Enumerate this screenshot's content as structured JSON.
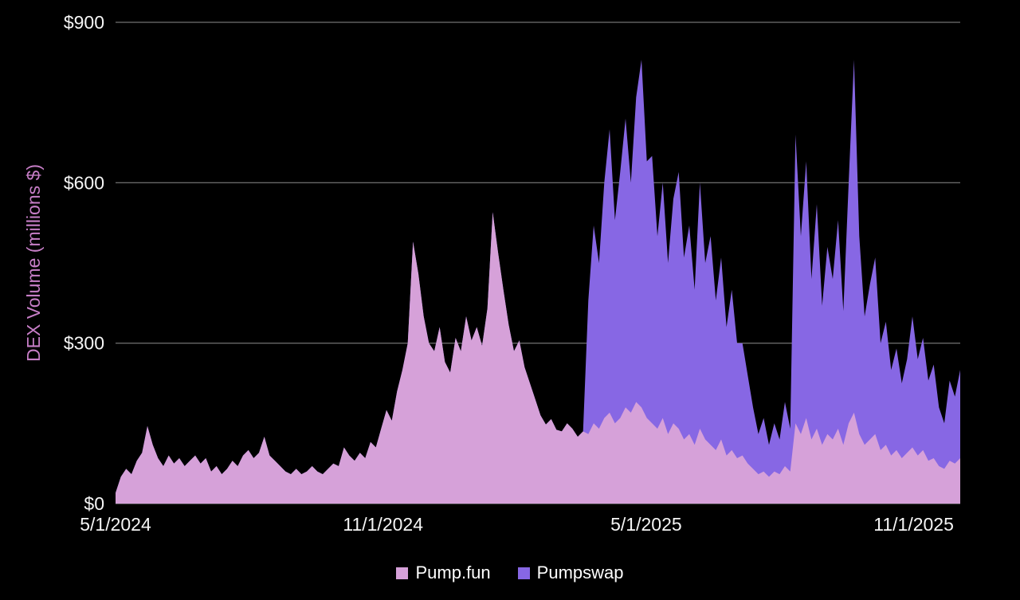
{
  "chart_data": {
    "type": "area",
    "stacked": true,
    "title": "",
    "xlabel": "",
    "ylabel": "DEX Volume (millions $)",
    "ylim": [
      0,
      900
    ],
    "background": "#000000",
    "gridline_color": "#8e8e8e",
    "axis_text_color": "#f5f5f5",
    "ylabel_color": "#c77ec7",
    "grid": true,
    "legend_position": "bottom",
    "y_ticks": [
      {
        "label": "$0",
        "value": 0
      },
      {
        "label": "$300",
        "value": 300
      },
      {
        "label": "$600",
        "value": 600
      },
      {
        "label": "$900",
        "value": 900
      }
    ],
    "x_ticks": [
      {
        "label": "5/1/2024",
        "pos": 0.0
      },
      {
        "label": "11/1/2024",
        "pos": 0.3167
      },
      {
        "label": "5/1/2025",
        "pos": 0.6282
      },
      {
        "label": "11/1/2025",
        "pos": 0.9449
      }
    ],
    "x_range_note": "5/1/2024 through early Dec 2025, ~3.7-day sampling",
    "series": [
      {
        "name": "Pump.fun",
        "color": "#d6a1d9",
        "values": [
          20,
          50,
          65,
          55,
          80,
          95,
          145,
          110,
          85,
          70,
          90,
          75,
          85,
          70,
          80,
          90,
          75,
          85,
          60,
          70,
          55,
          65,
          80,
          70,
          90,
          100,
          85,
          95,
          125,
          90,
          80,
          70,
          60,
          55,
          65,
          55,
          60,
          70,
          60,
          55,
          65,
          75,
          70,
          105,
          90,
          80,
          95,
          85,
          115,
          105,
          140,
          175,
          155,
          210,
          250,
          300,
          490,
          430,
          350,
          300,
          285,
          330,
          265,
          245,
          310,
          285,
          350,
          305,
          330,
          295,
          365,
          545,
          470,
          400,
          335,
          285,
          305,
          255,
          225,
          195,
          165,
          148,
          158,
          138,
          135,
          150,
          140,
          125,
          135,
          130,
          150,
          140,
          160,
          170,
          150,
          160,
          180,
          170,
          190,
          180,
          160,
          150,
          140,
          160,
          130,
          150,
          140,
          120,
          130,
          110,
          140,
          120,
          110,
          100,
          120,
          90,
          100,
          85,
          90,
          75,
          65,
          55,
          60,
          50,
          60,
          55,
          70,
          60,
          150,
          130,
          160,
          120,
          140,
          110,
          130,
          120,
          140,
          110,
          150,
          170,
          130,
          110,
          120,
          130,
          100,
          110,
          90,
          100,
          85,
          95,
          105,
          90,
          100,
          80,
          85,
          70,
          65,
          80,
          75,
          85
        ]
      },
      {
        "name": "Pumpswap",
        "color": "#8767e4",
        "values": [
          0,
          0,
          0,
          0,
          0,
          0,
          0,
          0,
          0,
          0,
          0,
          0,
          0,
          0,
          0,
          0,
          0,
          0,
          0,
          0,
          0,
          0,
          0,
          0,
          0,
          0,
          0,
          0,
          0,
          0,
          0,
          0,
          0,
          0,
          0,
          0,
          0,
          0,
          0,
          0,
          0,
          0,
          0,
          0,
          0,
          0,
          0,
          0,
          0,
          0,
          0,
          0,
          0,
          0,
          0,
          0,
          0,
          0,
          0,
          0,
          0,
          0,
          0,
          0,
          0,
          0,
          0,
          0,
          0,
          0,
          0,
          0,
          0,
          0,
          0,
          0,
          0,
          0,
          0,
          0,
          0,
          0,
          0,
          0,
          0,
          0,
          0,
          0,
          0,
          250,
          370,
          310,
          440,
          530,
          380,
          460,
          540,
          430,
          570,
          650,
          480,
          500,
          360,
          440,
          320,
          420,
          480,
          340,
          390,
          290,
          460,
          330,
          390,
          280,
          340,
          240,
          300,
          215,
          210,
          165,
          115,
          75,
          100,
          60,
          90,
          65,
          120,
          80,
          540,
          370,
          480,
          300,
          420,
          260,
          350,
          300,
          390,
          250,
          450,
          660,
          370,
          240,
          290,
          330,
          200,
          230,
          160,
          190,
          140,
          175,
          245,
          180,
          210,
          150,
          175,
          110,
          85,
          150,
          125,
          165
        ]
      }
    ]
  }
}
